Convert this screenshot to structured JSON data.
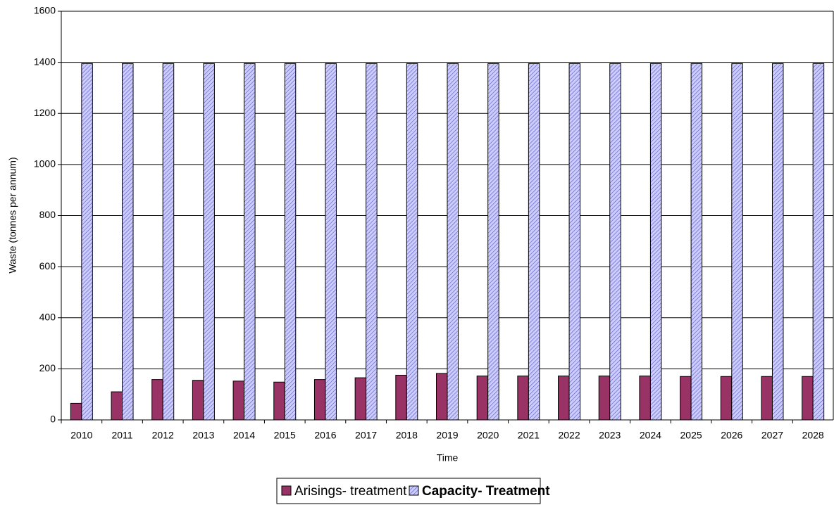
{
  "chart_data": {
    "type": "bar",
    "x_label": "Time",
    "y_label": "Waste (tonnes per annum)",
    "categories": [
      "2010",
      "2011",
      "2012",
      "2013",
      "2014",
      "2015",
      "2016",
      "2017",
      "2018",
      "2019",
      "2020",
      "2021",
      "2022",
      "2023",
      "2024",
      "2025",
      "2026",
      "2027",
      "2028"
    ],
    "series": [
      {
        "name": "Arisings- treatment",
        "color": "#993366",
        "values": [
          65,
          110,
          158,
          155,
          152,
          148,
          158,
          165,
          175,
          182,
          172,
          172,
          172,
          172,
          172,
          170,
          170,
          170,
          170
        ]
      },
      {
        "name": "Capacity- Treatment",
        "color": "#ccccff",
        "hatch": true,
        "values": [
          1395,
          1395,
          1395,
          1395,
          1395,
          1395,
          1395,
          1395,
          1395,
          1395,
          1395,
          1395,
          1395,
          1395,
          1395,
          1395,
          1395,
          1395,
          1395
        ]
      }
    ],
    "ylim": [
      0,
      1600
    ],
    "yticks": [
      0,
      200,
      400,
      600,
      800,
      1000,
      1200,
      1400,
      1600
    ],
    "grid": true
  }
}
